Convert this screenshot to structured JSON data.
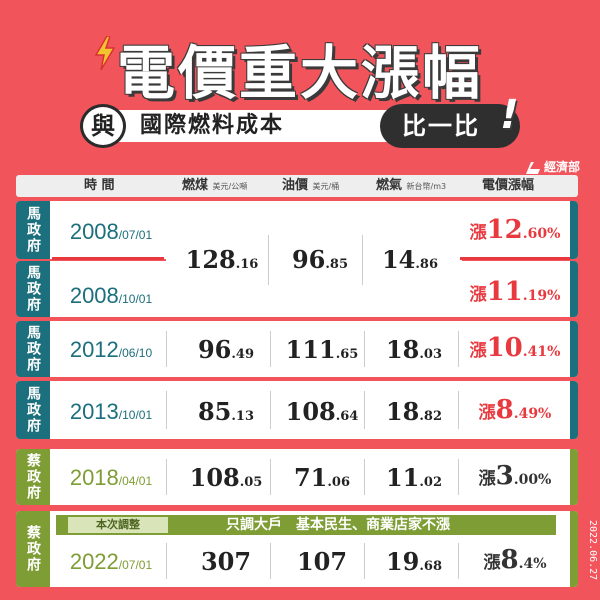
{
  "title": "電價重大漲幅",
  "subtitle": {
    "connector": "與",
    "text": "國際燃料成本",
    "compare": "比一比",
    "exclaim": "!"
  },
  "ministry": "經濟部",
  "date_stamp": "2022.06.27",
  "colors": {
    "background": "#f2545b",
    "ma_teal": "#1c6f7c",
    "tsai_green": "#7e9d35",
    "rise_red": "#e8393f"
  },
  "headers": {
    "time": "時 間",
    "coal": "燃煤",
    "coal_unit": "美元/公噸",
    "oil": "油價",
    "oil_unit": "美元/桶",
    "gas": "燃氣",
    "gas_unit": "新台幣/m3",
    "rise": "電價漲幅"
  },
  "rise_prefix": "漲",
  "rows": [
    {
      "gov": "馬政府",
      "year": "2008",
      "md": "/07/01",
      "rise_int": "12",
      "rise_dec": ".60%"
    },
    {
      "gov": "馬政府",
      "year": "2008",
      "md": "/10/01",
      "rise_int": "11",
      "rise_dec": ".19%"
    },
    {
      "gov": "馬政府",
      "year": "2012",
      "md": "/06/10",
      "coal_int": "96",
      "coal_dec": ".49",
      "oil_int": "111",
      "oil_dec": ".65",
      "gas_int": "18",
      "gas_dec": ".03",
      "rise_int": "10",
      "rise_dec": ".41%"
    },
    {
      "gov": "馬政府",
      "year": "2013",
      "md": "/10/01",
      "coal_int": "85",
      "coal_dec": ".13",
      "oil_int": "108",
      "oil_dec": ".64",
      "gas_int": "18",
      "gas_dec": ".82",
      "rise_int": "8",
      "rise_dec": ".49%"
    },
    {
      "gov": "蔡政府",
      "year": "2018",
      "md": "/04/01",
      "coal_int": "108",
      "coal_dec": ".05",
      "oil_int": "71",
      "oil_dec": ".06",
      "gas_int": "11",
      "gas_dec": ".02",
      "rise_int": "3",
      "rise_dec": ".00%"
    },
    {
      "gov": "蔡政府",
      "year": "2022",
      "md": "/07/01",
      "coal_int": "307",
      "coal_dec": "",
      "oil_int": "107",
      "oil_dec": "",
      "gas_int": "19",
      "gas_dec": ".68",
      "rise_int": "8",
      "rise_dec": ".4%"
    }
  ],
  "merged_2008": {
    "coal_int": "128",
    "coal_dec": ".16",
    "oil_int": "96",
    "oil_dec": ".85",
    "gas_int": "14",
    "gas_dec": ".86"
  },
  "note_2022": {
    "tag": "本次調整",
    "text": "只調大戶　基本民生、商業店家不漲"
  }
}
